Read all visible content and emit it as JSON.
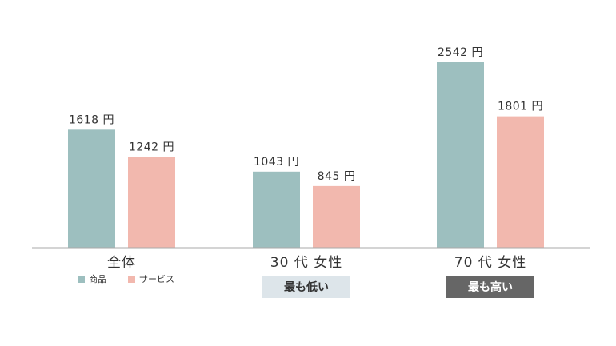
{
  "chart_data": {
    "type": "bar",
    "categories": [
      "全体",
      "30 代 女性",
      "70 代 女性"
    ],
    "series": [
      {
        "name": "商品",
        "color": "#9dbfbf",
        "values": [
          1618,
          1043,
          2542
        ],
        "value_labels": [
          "1618 円",
          "1043 円",
          "2542 円"
        ]
      },
      {
        "name": "サービス",
        "color": "#f2b8ae",
        "values": [
          1242,
          845,
          1801
        ],
        "value_labels": [
          "1242 円",
          "845 円",
          "1801 円"
        ]
      }
    ],
    "annotations": [
      null,
      "最も低い",
      "最も高い"
    ]
  }
}
